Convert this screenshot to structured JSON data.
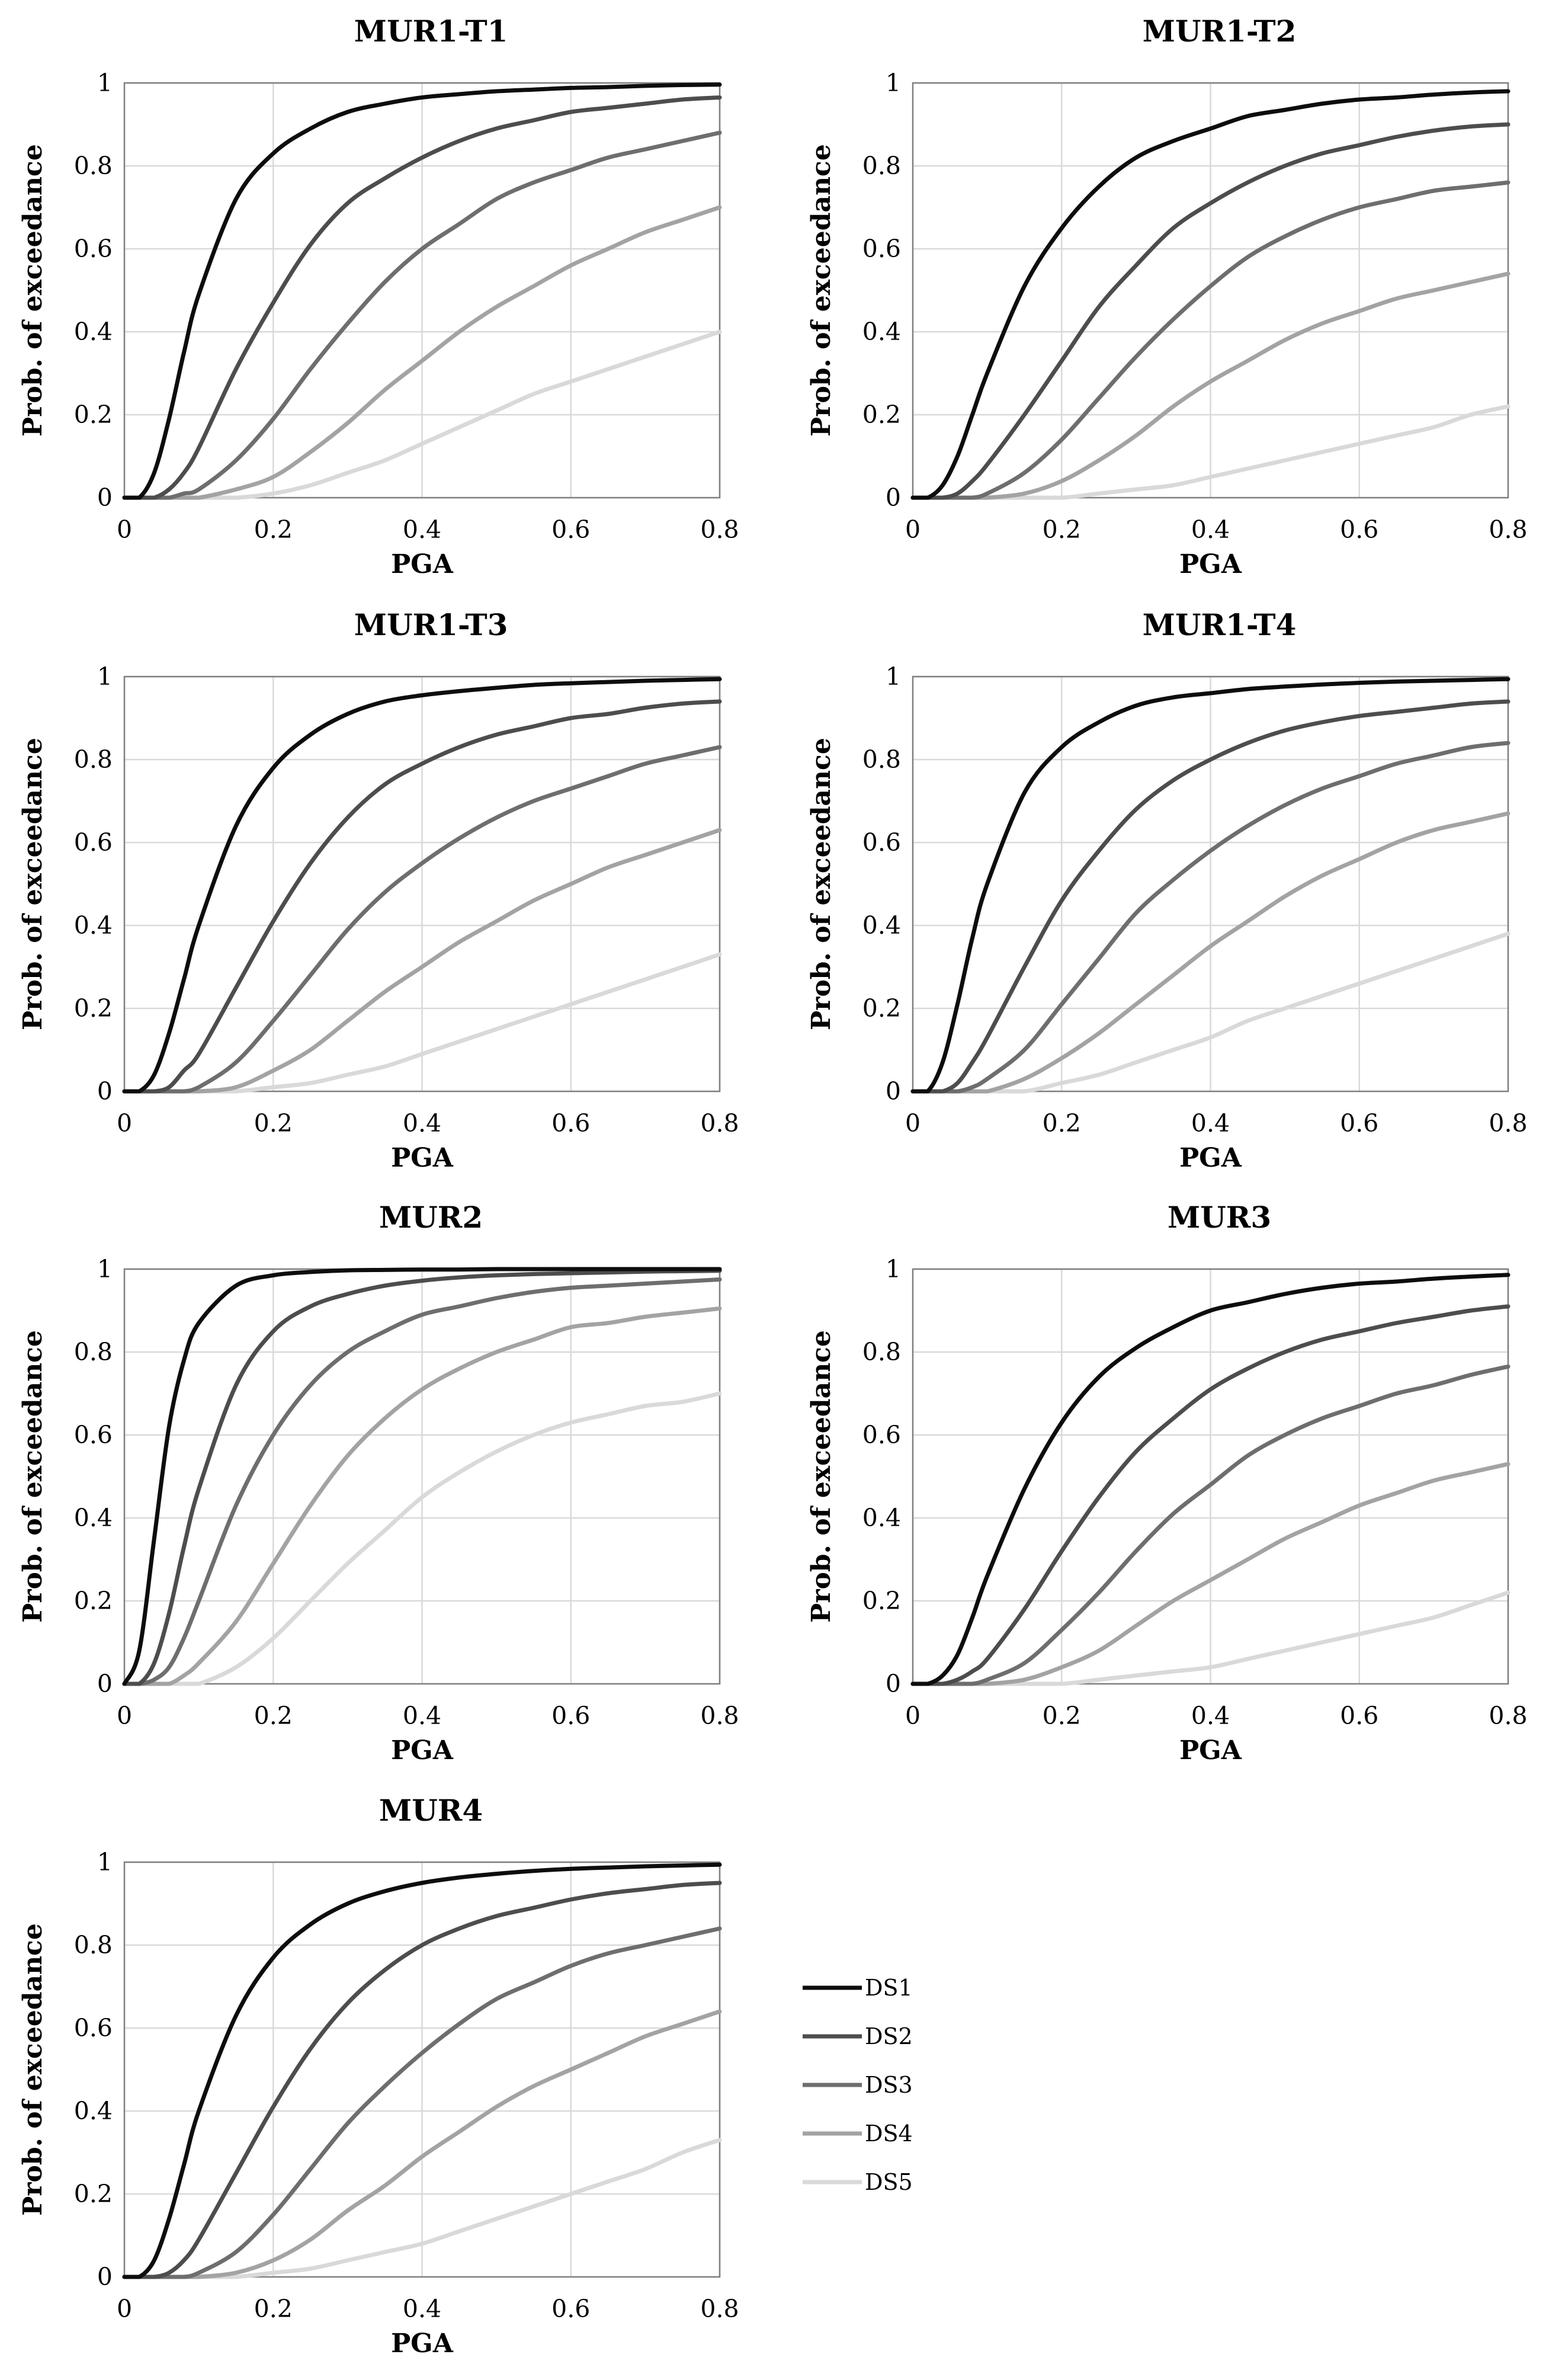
{
  "chart_data": {
    "type": "line",
    "shared": {
      "xlabel": "PGA",
      "ylabel": "Prob. of exceedance",
      "xlim": [
        0,
        0.8
      ],
      "ylim": [
        0,
        1
      ],
      "xticks": [
        0,
        0.2,
        0.4,
        0.6,
        0.8
      ],
      "xtick_labels": [
        "0",
        "0.2",
        "0.4",
        "0.6",
        "0.8"
      ],
      "yticks": [
        0,
        0.2,
        0.4,
        0.6,
        0.8,
        1
      ],
      "ytick_labels": [
        "0",
        "0.2",
        "0.4",
        "0.6",
        "0.8",
        "1"
      ],
      "grid": true,
      "x": [
        0,
        0.02,
        0.04,
        0.06,
        0.08,
        0.1,
        0.15,
        0.2,
        0.25,
        0.3,
        0.35,
        0.4,
        0.45,
        0.5,
        0.55,
        0.6,
        0.65,
        0.7,
        0.75,
        0.8
      ]
    },
    "legend": {
      "placement": "right of MUR4",
      "entries": [
        {
          "name": "DS1",
          "color": "#0d0d0d"
        },
        {
          "name": "DS2",
          "color": "#4d4d4d"
        },
        {
          "name": "DS3",
          "color": "#6e6e6e"
        },
        {
          "name": "DS4",
          "color": "#a3a3a3"
        },
        {
          "name": "DS5",
          "color": "#d9d9d9"
        }
      ]
    },
    "panels": [
      {
        "title": "MUR1-T1",
        "series": [
          {
            "name": "DS1",
            "values": [
              0,
              0.0,
              0.06,
              0.19,
              0.35,
              0.49,
              0.72,
              0.83,
              0.89,
              0.93,
              0.95,
              0.965,
              0.973,
              0.98,
              0.984,
              0.988,
              0.99,
              0.993,
              0.995,
              0.996
            ]
          },
          {
            "name": "DS2",
            "values": [
              0,
              0.0,
              0.0,
              0.02,
              0.06,
              0.12,
              0.31,
              0.47,
              0.61,
              0.71,
              0.77,
              0.82,
              0.86,
              0.89,
              0.91,
              0.93,
              0.94,
              0.95,
              0.96,
              0.965
            ]
          },
          {
            "name": "DS3",
            "values": [
              0,
              0.0,
              0.0,
              0.0,
              0.01,
              0.02,
              0.09,
              0.19,
              0.31,
              0.42,
              0.52,
              0.6,
              0.66,
              0.72,
              0.76,
              0.79,
              0.82,
              0.84,
              0.86,
              0.88
            ]
          },
          {
            "name": "DS4",
            "values": [
              0,
              0.0,
              0.0,
              0.0,
              0.0,
              0.0,
              0.02,
              0.05,
              0.11,
              0.18,
              0.26,
              0.33,
              0.4,
              0.46,
              0.51,
              0.56,
              0.6,
              0.64,
              0.67,
              0.7
            ]
          },
          {
            "name": "DS5",
            "values": [
              0,
              0.0,
              0.0,
              0.0,
              0.0,
              0.0,
              0.0,
              0.01,
              0.03,
              0.06,
              0.09,
              0.13,
              0.17,
              0.21,
              0.25,
              0.28,
              0.31,
              0.34,
              0.37,
              0.4
            ]
          }
        ]
      },
      {
        "title": "MUR1-T2",
        "series": [
          {
            "name": "DS1",
            "values": [
              0,
              0.0,
              0.03,
              0.1,
              0.2,
              0.3,
              0.51,
              0.65,
              0.75,
              0.82,
              0.86,
              0.89,
              0.92,
              0.935,
              0.95,
              0.96,
              0.965,
              0.972,
              0.977,
              0.98
            ]
          },
          {
            "name": "DS2",
            "values": [
              0,
              0.0,
              0.0,
              0.01,
              0.04,
              0.08,
              0.2,
              0.33,
              0.46,
              0.56,
              0.65,
              0.71,
              0.76,
              0.8,
              0.83,
              0.85,
              0.87,
              0.885,
              0.895,
              0.9
            ]
          },
          {
            "name": "DS3",
            "values": [
              0,
              0.0,
              0.0,
              0.0,
              0.0,
              0.01,
              0.06,
              0.14,
              0.24,
              0.34,
              0.43,
              0.51,
              0.58,
              0.63,
              0.67,
              0.7,
              0.72,
              0.74,
              0.75,
              0.76
            ]
          },
          {
            "name": "DS4",
            "values": [
              0,
              0.0,
              0.0,
              0.0,
              0.0,
              0.0,
              0.01,
              0.04,
              0.09,
              0.15,
              0.22,
              0.28,
              0.33,
              0.38,
              0.42,
              0.45,
              0.48,
              0.5,
              0.52,
              0.54
            ]
          },
          {
            "name": "DS5",
            "values": [
              0,
              0.0,
              0.0,
              0.0,
              0.0,
              0.0,
              0.0,
              0.0,
              0.01,
              0.02,
              0.03,
              0.05,
              0.07,
              0.09,
              0.11,
              0.13,
              0.15,
              0.17,
              0.2,
              0.22
            ]
          }
        ]
      },
      {
        "title": "MUR1-T3",
        "series": [
          {
            "name": "DS1",
            "values": [
              0,
              0.0,
              0.04,
              0.14,
              0.27,
              0.4,
              0.64,
              0.78,
              0.86,
              0.91,
              0.94,
              0.955,
              0.965,
              0.973,
              0.98,
              0.984,
              0.987,
              0.99,
              0.992,
              0.994
            ]
          },
          {
            "name": "DS2",
            "values": [
              0,
              0.0,
              0.0,
              0.01,
              0.05,
              0.09,
              0.25,
              0.41,
              0.55,
              0.66,
              0.74,
              0.79,
              0.83,
              0.86,
              0.88,
              0.9,
              0.91,
              0.925,
              0.935,
              0.94
            ]
          },
          {
            "name": "DS3",
            "values": [
              0,
              0.0,
              0.0,
              0.0,
              0.0,
              0.01,
              0.07,
              0.17,
              0.28,
              0.39,
              0.48,
              0.55,
              0.61,
              0.66,
              0.7,
              0.73,
              0.76,
              0.79,
              0.81,
              0.83
            ]
          },
          {
            "name": "DS4",
            "values": [
              0,
              0.0,
              0.0,
              0.0,
              0.0,
              0.0,
              0.01,
              0.05,
              0.1,
              0.17,
              0.24,
              0.3,
              0.36,
              0.41,
              0.46,
              0.5,
              0.54,
              0.57,
              0.6,
              0.63
            ]
          },
          {
            "name": "DS5",
            "values": [
              0,
              0.0,
              0.0,
              0.0,
              0.0,
              0.0,
              0.0,
              0.01,
              0.02,
              0.04,
              0.06,
              0.09,
              0.12,
              0.15,
              0.18,
              0.21,
              0.24,
              0.27,
              0.3,
              0.33
            ]
          }
        ]
      },
      {
        "title": "MUR1-T4",
        "series": [
          {
            "name": "DS1",
            "values": [
              0,
              0.0,
              0.07,
              0.21,
              0.37,
              0.5,
              0.72,
              0.83,
              0.89,
              0.93,
              0.95,
              0.96,
              0.97,
              0.976,
              0.981,
              0.985,
              0.988,
              0.99,
              0.992,
              0.994
            ]
          },
          {
            "name": "DS2",
            "values": [
              0,
              0.0,
              0.0,
              0.02,
              0.07,
              0.13,
              0.3,
              0.46,
              0.58,
              0.68,
              0.75,
              0.8,
              0.84,
              0.87,
              0.89,
              0.905,
              0.915,
              0.925,
              0.935,
              0.94
            ]
          },
          {
            "name": "DS3",
            "values": [
              0,
              0.0,
              0.0,
              0.0,
              0.01,
              0.03,
              0.1,
              0.21,
              0.32,
              0.43,
              0.51,
              0.58,
              0.64,
              0.69,
              0.73,
              0.76,
              0.79,
              0.81,
              0.83,
              0.84
            ]
          },
          {
            "name": "DS4",
            "values": [
              0,
              0.0,
              0.0,
              0.0,
              0.0,
              0.0,
              0.03,
              0.08,
              0.14,
              0.21,
              0.28,
              0.35,
              0.41,
              0.47,
              0.52,
              0.56,
              0.6,
              0.63,
              0.65,
              0.67
            ]
          },
          {
            "name": "DS5",
            "values": [
              0,
              0.0,
              0.0,
              0.0,
              0.0,
              0.0,
              0.0,
              0.02,
              0.04,
              0.07,
              0.1,
              0.13,
              0.17,
              0.2,
              0.23,
              0.26,
              0.29,
              0.32,
              0.35,
              0.38
            ]
          }
        ]
      },
      {
        "title": "MUR2",
        "series": [
          {
            "name": "DS1",
            "values": [
              0,
              0.08,
              0.35,
              0.62,
              0.78,
              0.87,
              0.96,
              0.985,
              0.993,
              0.997,
              0.998,
              0.999,
              0.999,
              1,
              1,
              1,
              1,
              1,
              1,
              1
            ]
          },
          {
            "name": "DS2",
            "values": [
              0,
              0.0,
              0.05,
              0.17,
              0.33,
              0.47,
              0.72,
              0.85,
              0.91,
              0.94,
              0.96,
              0.972,
              0.98,
              0.985,
              0.988,
              0.99,
              0.992,
              0.994,
              0.995,
              0.996
            ]
          },
          {
            "name": "DS3",
            "values": [
              0,
              0.0,
              0.01,
              0.04,
              0.11,
              0.2,
              0.43,
              0.6,
              0.72,
              0.8,
              0.85,
              0.89,
              0.91,
              0.93,
              0.945,
              0.955,
              0.96,
              0.965,
              0.97,
              0.975
            ]
          },
          {
            "name": "DS4",
            "values": [
              0,
              0.0,
              0.0,
              0.0,
              0.02,
              0.05,
              0.15,
              0.29,
              0.43,
              0.55,
              0.64,
              0.71,
              0.76,
              0.8,
              0.83,
              0.86,
              0.87,
              0.885,
              0.895,
              0.905
            ]
          },
          {
            "name": "DS5",
            "values": [
              0,
              0.0,
              0.0,
              0.0,
              0.0,
              0.0,
              0.04,
              0.11,
              0.2,
              0.29,
              0.37,
              0.45,
              0.51,
              0.56,
              0.6,
              0.63,
              0.65,
              0.67,
              0.68,
              0.7
            ]
          }
        ]
      },
      {
        "title": "MUR3",
        "series": [
          {
            "name": "DS1",
            "values": [
              0,
              0.0,
              0.02,
              0.07,
              0.16,
              0.26,
              0.47,
              0.63,
              0.74,
              0.81,
              0.86,
              0.9,
              0.92,
              0.94,
              0.955,
              0.965,
              0.97,
              0.977,
              0.982,
              0.986
            ]
          },
          {
            "name": "DS2",
            "values": [
              0,
              0.0,
              0.0,
              0.01,
              0.03,
              0.06,
              0.18,
              0.32,
              0.45,
              0.56,
              0.64,
              0.71,
              0.76,
              0.8,
              0.83,
              0.85,
              0.87,
              0.885,
              0.9,
              0.91
            ]
          },
          {
            "name": "DS3",
            "values": [
              0,
              0.0,
              0.0,
              0.0,
              0.0,
              0.01,
              0.05,
              0.13,
              0.22,
              0.32,
              0.41,
              0.48,
              0.55,
              0.6,
              0.64,
              0.67,
              0.7,
              0.72,
              0.745,
              0.765
            ]
          },
          {
            "name": "DS4",
            "values": [
              0,
              0.0,
              0.0,
              0.0,
              0.0,
              0.0,
              0.01,
              0.04,
              0.08,
              0.14,
              0.2,
              0.25,
              0.3,
              0.35,
              0.39,
              0.43,
              0.46,
              0.49,
              0.51,
              0.53
            ]
          },
          {
            "name": "DS5",
            "values": [
              0,
              0.0,
              0.0,
              0.0,
              0.0,
              0.0,
              0.0,
              0.0,
              0.01,
              0.02,
              0.03,
              0.04,
              0.06,
              0.08,
              0.1,
              0.12,
              0.14,
              0.16,
              0.19,
              0.22
            ]
          }
        ]
      },
      {
        "title": "MUR4",
        "series": [
          {
            "name": "DS1",
            "values": [
              0,
              0.0,
              0.04,
              0.14,
              0.27,
              0.4,
              0.63,
              0.77,
              0.85,
              0.9,
              0.93,
              0.95,
              0.963,
              0.972,
              0.979,
              0.984,
              0.987,
              0.99,
              0.992,
              0.994
            ]
          },
          {
            "name": "DS2",
            "values": [
              0,
              0.0,
              0.0,
              0.01,
              0.04,
              0.09,
              0.25,
              0.41,
              0.55,
              0.66,
              0.74,
              0.8,
              0.84,
              0.87,
              0.89,
              0.91,
              0.925,
              0.935,
              0.945,
              0.95
            ]
          },
          {
            "name": "DS3",
            "values": [
              0,
              0.0,
              0.0,
              0.0,
              0.0,
              0.01,
              0.06,
              0.15,
              0.26,
              0.37,
              0.46,
              0.54,
              0.61,
              0.67,
              0.71,
              0.75,
              0.78,
              0.8,
              0.82,
              0.84
            ]
          },
          {
            "name": "DS4",
            "values": [
              0,
              0.0,
              0.0,
              0.0,
              0.0,
              0.0,
              0.01,
              0.04,
              0.09,
              0.16,
              0.22,
              0.29,
              0.35,
              0.41,
              0.46,
              0.5,
              0.54,
              0.58,
              0.61,
              0.64
            ]
          },
          {
            "name": "DS5",
            "values": [
              0,
              0.0,
              0.0,
              0.0,
              0.0,
              0.0,
              0.0,
              0.01,
              0.02,
              0.04,
              0.06,
              0.08,
              0.11,
              0.14,
              0.17,
              0.2,
              0.23,
              0.26,
              0.3,
              0.33
            ]
          }
        ]
      }
    ]
  }
}
